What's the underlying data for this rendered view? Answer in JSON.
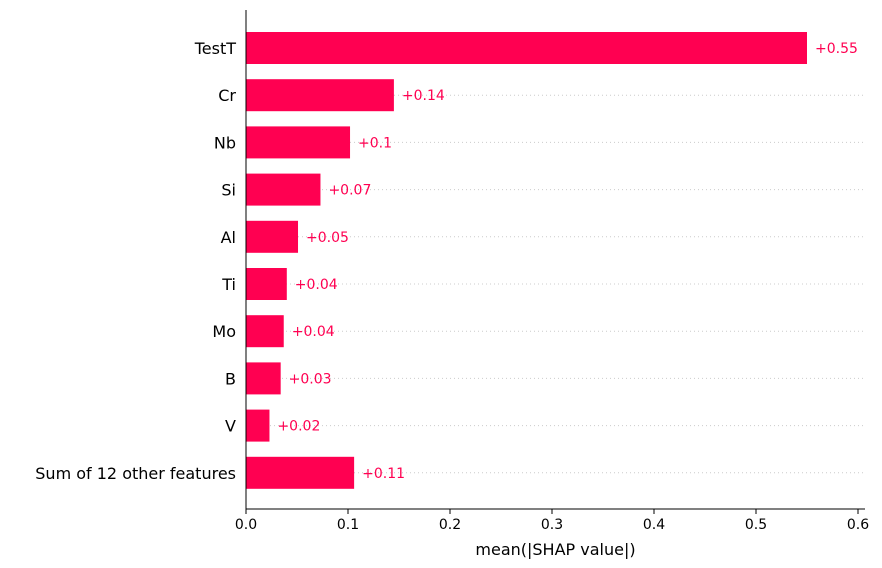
{
  "chart_data": {
    "type": "bar",
    "orientation": "horizontal",
    "categories": [
      "TestT",
      "Cr",
      "Nb",
      "Si",
      "Al",
      "Ti",
      "Mo",
      "B",
      "V",
      "Sum of 12 other features"
    ],
    "values": [
      0.55,
      0.145,
      0.102,
      0.073,
      0.051,
      0.04,
      0.037,
      0.034,
      0.023,
      0.106
    ],
    "value_labels": [
      "+0.55",
      "+0.14",
      "+0.1",
      "+0.07",
      "+0.05",
      "+0.04",
      "+0.04",
      "+0.03",
      "+0.02",
      "+0.11"
    ],
    "xlabel": "mean(|SHAP value|)",
    "xlim": [
      0,
      0.6
    ],
    "xticks": [
      0.0,
      0.1,
      0.2,
      0.3,
      0.4,
      0.5,
      0.6
    ],
    "xtick_labels": [
      "0.0",
      "0.1",
      "0.2",
      "0.3",
      "0.4",
      "0.5",
      "0.6"
    ],
    "grid": "dotted horizontal guide lines per row",
    "colors": {
      "bar": "#ff0051",
      "value_label": "#ff0051",
      "grid": "#cccccc",
      "axis": "#000000"
    }
  }
}
